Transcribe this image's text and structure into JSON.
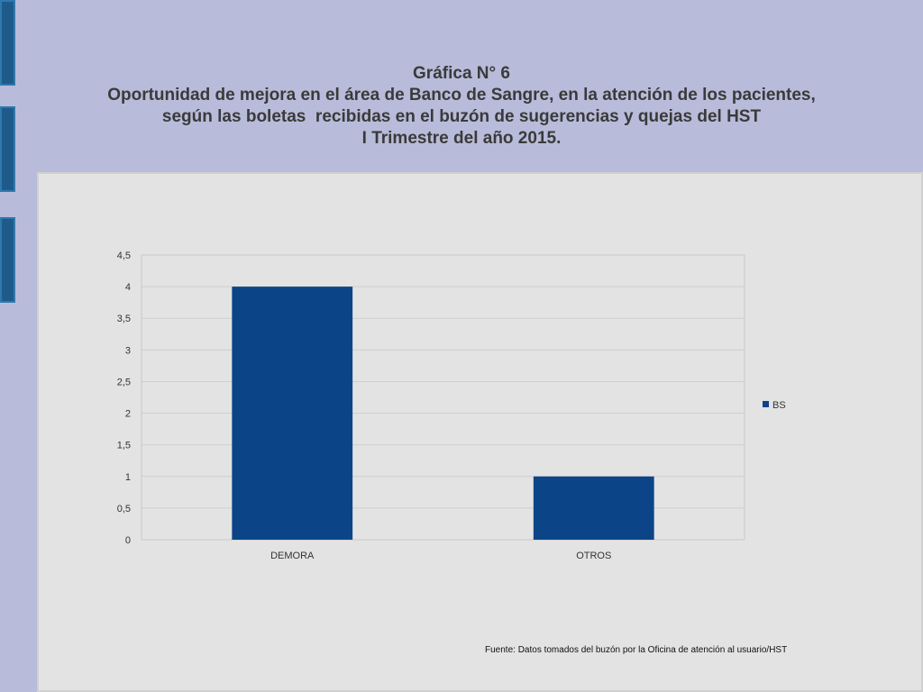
{
  "title": {
    "line1": "Gráfica N° 6",
    "line2": "Oportunidad de mejora en el área de Banco de Sangre, en la atención de los pacientes,",
    "line3": "según las boletas  recibidas en el buzón de sugerencias y quejas del HST",
    "line4": "I Trimestre del año 2015."
  },
  "source_note": "Fuente: Datos tomados del buzón por la Oficina de atención al usuario/HST",
  "colors": {
    "background": "#b8bcda",
    "panel": "#e3e3e3",
    "accent": "#1f5b8a",
    "bar": "#0b4587"
  },
  "chart_data": {
    "type": "bar",
    "categories": [
      "DEMORA",
      "OTROS"
    ],
    "series": [
      {
        "name": "BS",
        "values": [
          4,
          1
        ]
      }
    ],
    "ylim": [
      0,
      4.5
    ],
    "yticks": [
      "0",
      "0,5",
      "1",
      "1,5",
      "2",
      "2,5",
      "3",
      "3,5",
      "4",
      "4,5"
    ],
    "xlabel": "",
    "ylabel": "",
    "grid": true,
    "legend": "right"
  }
}
